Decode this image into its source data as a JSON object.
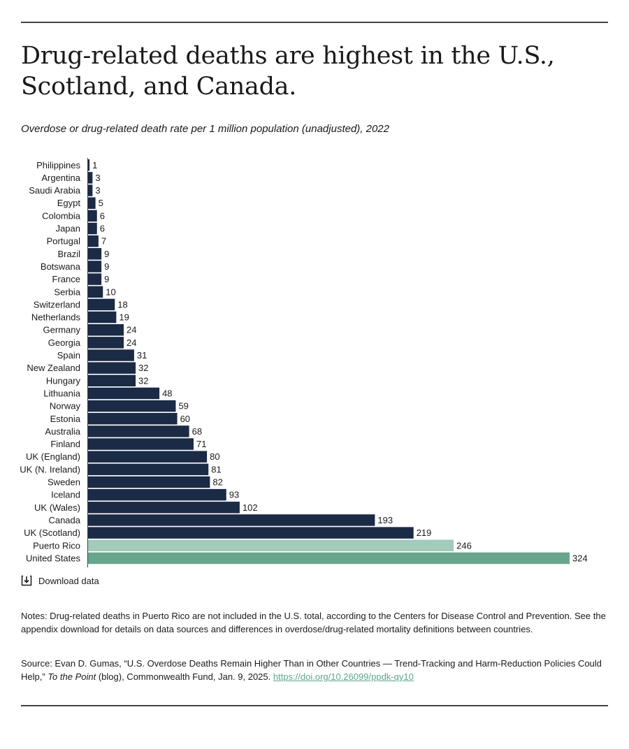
{
  "header": {
    "title": "Drug-related deaths are highest in the U.S., Scotland, and Canada.",
    "subtitle": "Overdose or drug-related death rate per 1 million population (unadjusted), 2022"
  },
  "chart_data": {
    "type": "bar",
    "orientation": "horizontal",
    "categories": [
      "Philippines",
      "Argentina",
      "Saudi Arabia",
      "Egypt",
      "Colombia",
      "Japan",
      "Portugal",
      "Brazil",
      "Botswana",
      "France",
      "Serbia",
      "Switzerland",
      "Netherlands",
      "Germany",
      "Georgia",
      "Spain",
      "New Zealand",
      "Hungary",
      "Lithuania",
      "Norway",
      "Estonia",
      "Australia",
      "Finland",
      "UK (England)",
      "UK (N. Ireland)",
      "Sweden",
      "Iceland",
      "UK (Wales)",
      "Canada",
      "UK (Scotland)",
      "Puerto Rico",
      "United States"
    ],
    "values": [
      1,
      3,
      3,
      5,
      6,
      6,
      7,
      9,
      9,
      9,
      10,
      18,
      19,
      24,
      24,
      31,
      32,
      32,
      48,
      59,
      60,
      68,
      71,
      80,
      81,
      82,
      93,
      102,
      193,
      219,
      246,
      324
    ],
    "colors": {
      "default": "#1b2a45",
      "Puerto Rico": "#a3cabb",
      "United States": "#67a68d"
    },
    "xlim": [
      0,
      324
    ],
    "grid": false,
    "legend": "none"
  },
  "download": {
    "label": "Download data",
    "icon": "download-icon"
  },
  "notes": "Notes: Drug-related deaths in Puerto Rico are not included in the U.S. total, according to the Centers for Disease Control and Prevention. See the appendix download for details on data sources and differences in overdose/drug-related mortality definitions between countries.",
  "source": {
    "prefix": "Source: Evan D. Gumas, “U.S. Overdose Deaths Remain Higher Than in Other Countries — Trend-Tracking and Harm-Reduction Policies Could Help,”",
    "publication": "To the Point",
    "suffix": "(blog), Commonwealth Fund, Jan. 9, 2025.",
    "link_text": "https://doi.org/10.26099/ppdk-qy10"
  }
}
